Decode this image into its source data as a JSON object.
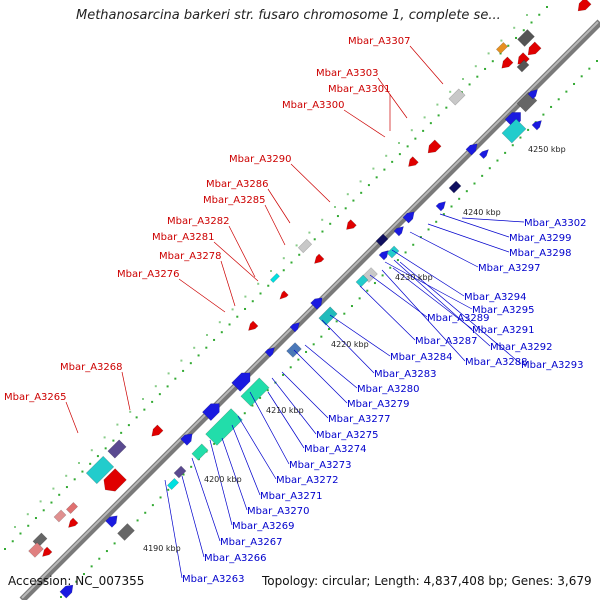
{
  "title": "Methanosarcina barkeri str. fusaro chromosome 1, complete se...",
  "accession": "Accession: NC_007355",
  "summary": "Topology: circular; Length: 4,837,408 bp; Genes: 3,679",
  "colors": {
    "reverse_label": "#cc0000",
    "forward_label": "#0000cc"
  },
  "ticks": [
    {
      "label": "4190 kbp"
    },
    {
      "label": "4200 kbp"
    },
    {
      "label": "4210 kbp"
    },
    {
      "label": "4220 kbp"
    },
    {
      "label": "4230 kbp"
    },
    {
      "label": "4240 kbp"
    },
    {
      "label": "4250 kbp"
    }
  ],
  "reverse_labels": [
    {
      "label": "Mbar_A3307"
    },
    {
      "label": "Mbar_A3303"
    },
    {
      "label": "Mbar_A3301"
    },
    {
      "label": "Mbar_A3300"
    },
    {
      "label": "Mbar_A3290"
    },
    {
      "label": "Mbar_A3286"
    },
    {
      "label": "Mbar_A3285"
    },
    {
      "label": "Mbar_A3282"
    },
    {
      "label": "Mbar_A3281"
    },
    {
      "label": "Mbar_A3278"
    },
    {
      "label": "Mbar_A3276"
    },
    {
      "label": "Mbar_A3268"
    },
    {
      "label": "Mbar_A3265"
    }
  ],
  "forward_labels": [
    {
      "label": "Mbar_A3302"
    },
    {
      "label": "Mbar_A3299"
    },
    {
      "label": "Mbar_A3298"
    },
    {
      "label": "Mbar_A3297"
    },
    {
      "label": "Mbar_A3294"
    },
    {
      "label": "Mbar_A3295"
    },
    {
      "label": "Mbar_A3289"
    },
    {
      "label": "Mbar_A3291"
    },
    {
      "label": "Mbar_A3287"
    },
    {
      "label": "Mbar_A3292"
    },
    {
      "label": "Mbar_A3284"
    },
    {
      "label": "Mbar_A3288"
    },
    {
      "label": "Mbar_A3293"
    },
    {
      "label": "Mbar_A3283"
    },
    {
      "label": "Mbar_A3280"
    },
    {
      "label": "Mbar_A3279"
    },
    {
      "label": "Mbar_A3277"
    },
    {
      "label": "Mbar_A3275"
    },
    {
      "label": "Mbar_A3274"
    },
    {
      "label": "Mbar_A3273"
    },
    {
      "label": "Mbar_A3272"
    },
    {
      "label": "Mbar_A3271"
    },
    {
      "label": "Mbar_A3270"
    },
    {
      "label": "Mbar_A3269"
    },
    {
      "label": "Mbar_A3267"
    },
    {
      "label": "Mbar_A3266"
    },
    {
      "label": "Mbar_A3263"
    }
  ]
}
